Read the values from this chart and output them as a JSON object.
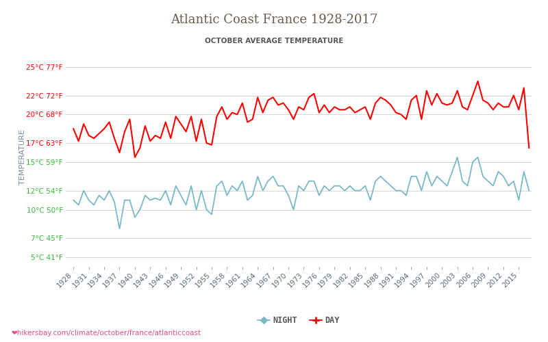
{
  "title": "Atlantic Coast France 1928-2017",
  "subtitle": "OCTOBER AVERAGE TEMPERATURE",
  "ylabel": "TEMPERATURE",
  "xlabel_url": "❤hikersbay.com/climate/october/france/atlanticcoast",
  "years": [
    1928,
    1929,
    1930,
    1931,
    1932,
    1933,
    1934,
    1935,
    1936,
    1937,
    1938,
    1939,
    1940,
    1941,
    1942,
    1943,
    1944,
    1945,
    1946,
    1947,
    1948,
    1949,
    1950,
    1951,
    1952,
    1953,
    1954,
    1955,
    1956,
    1957,
    1958,
    1959,
    1960,
    1961,
    1962,
    1963,
    1964,
    1965,
    1966,
    1967,
    1968,
    1969,
    1970,
    1971,
    1972,
    1973,
    1974,
    1975,
    1976,
    1977,
    1978,
    1979,
    1980,
    1981,
    1982,
    1983,
    1984,
    1985,
    1986,
    1987,
    1988,
    1989,
    1990,
    1991,
    1992,
    1993,
    1994,
    1995,
    1996,
    1997,
    1998,
    1999,
    2000,
    2001,
    2002,
    2003,
    2004,
    2005,
    2006,
    2007,
    2008,
    2009,
    2010,
    2011,
    2012,
    2013,
    2014,
    2015,
    2016,
    2017
  ],
  "day_temps": [
    18.5,
    17.2,
    19.0,
    17.8,
    17.5,
    18.0,
    18.5,
    19.2,
    17.5,
    16.0,
    18.2,
    19.5,
    15.5,
    16.5,
    18.8,
    17.2,
    17.8,
    17.5,
    19.2,
    17.5,
    19.8,
    19.0,
    18.2,
    19.8,
    17.2,
    19.5,
    17.0,
    16.8,
    19.8,
    20.8,
    19.5,
    20.2,
    20.0,
    21.2,
    19.2,
    19.5,
    21.8,
    20.2,
    21.5,
    21.8,
    21.0,
    21.2,
    20.5,
    19.5,
    20.8,
    20.5,
    21.8,
    22.2,
    20.2,
    21.0,
    20.2,
    20.8,
    20.5,
    20.5,
    20.8,
    20.2,
    20.5,
    20.8,
    19.5,
    21.2,
    21.8,
    21.5,
    21.0,
    20.2,
    20.0,
    19.5,
    21.5,
    22.0,
    19.5,
    22.5,
    21.0,
    22.2,
    21.2,
    21.0,
    21.2,
    22.5,
    20.8,
    20.5,
    22.0,
    23.5,
    21.5,
    21.2,
    20.5,
    21.2,
    20.8,
    20.8,
    22.0,
    20.5,
    22.8,
    16.5
  ],
  "night_temps": [
    11.0,
    10.5,
    12.0,
    11.0,
    10.5,
    11.5,
    11.0,
    12.0,
    10.8,
    8.0,
    11.0,
    11.0,
    9.2,
    10.0,
    11.5,
    11.0,
    11.2,
    11.0,
    12.0,
    10.5,
    12.5,
    11.5,
    10.5,
    12.5,
    10.0,
    12.0,
    10.0,
    9.5,
    12.5,
    13.0,
    11.5,
    12.5,
    12.0,
    13.0,
    11.0,
    11.5,
    13.5,
    12.0,
    13.0,
    13.5,
    12.5,
    12.5,
    11.5,
    10.0,
    12.5,
    12.0,
    13.0,
    13.0,
    11.5,
    12.5,
    12.0,
    12.5,
    12.5,
    12.0,
    12.5,
    12.0,
    12.0,
    12.5,
    11.0,
    13.0,
    13.5,
    13.0,
    12.5,
    12.0,
    12.0,
    11.5,
    13.5,
    13.5,
    12.0,
    14.0,
    12.5,
    13.5,
    13.0,
    12.5,
    14.0,
    15.5,
    13.0,
    12.5,
    15.0,
    15.5,
    13.5,
    13.0,
    12.5,
    14.0,
    13.5,
    12.5,
    13.0,
    11.0,
    14.0,
    12.0
  ],
  "day_color": "#ff0000",
  "night_color": "#7ab8c8",
  "background_color": "#ffffff",
  "grid_color": "#d0d0d0",
  "title_color": "#6a5a4a",
  "subtitle_color": "#555555",
  "ylabel_color": "#7a8a9a",
  "url_color": "#e05080",
  "yticks_celsius": [
    5,
    7,
    10,
    12,
    15,
    17,
    20,
    22,
    25
  ],
  "yticks_fahrenheit": [
    41,
    45,
    50,
    54,
    59,
    63,
    68,
    72,
    77
  ],
  "ytick_colors": [
    "green",
    "green",
    "green",
    "green",
    "green",
    "red",
    "red",
    "red",
    "red"
  ],
  "ylim": [
    4,
    27
  ],
  "xlim": [
    1926.5,
    2017.5
  ],
  "legend_night_label": "NIGHT",
  "legend_day_label": "DAY"
}
